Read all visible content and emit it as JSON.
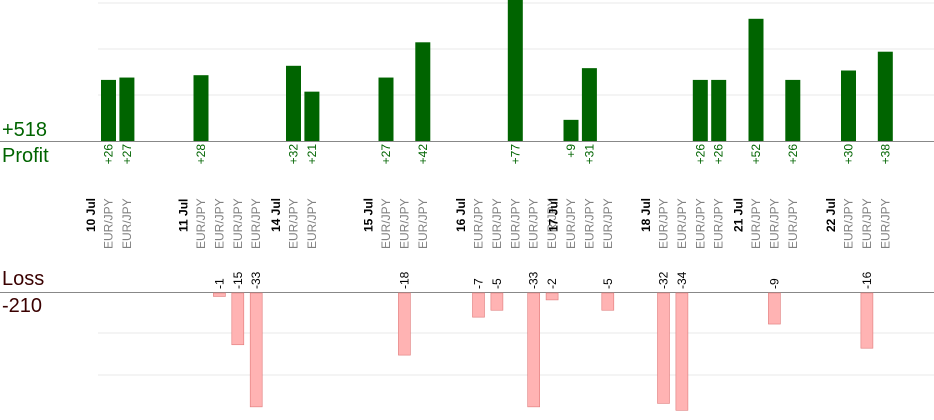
{
  "summary": {
    "profit_total": "+518",
    "profit_label": "Profit",
    "loss_label": "Loss",
    "loss_total": "-210"
  },
  "colors": {
    "profit_bar": "#006400",
    "profit_text": "#006400",
    "loss_bar": "#ffb3b3",
    "loss_text": "#000000",
    "date_text": "#000000",
    "pair_text": "#808080",
    "grid": "#e8e8e8",
    "baseline": "#888888"
  },
  "chart_data": {
    "type": "bar",
    "title": "",
    "xlabel": "",
    "ylabel": "",
    "grid": true,
    "profit_ylim": [
      0,
      60
    ],
    "loss_ylim": [
      -50,
      0
    ],
    "categories": [
      {
        "date": "10 Jul",
        "trades": [
          {
            "pair": "EUR/JPY",
            "value": 26
          },
          {
            "pair": "EUR/JPY",
            "value": 27
          }
        ]
      },
      {
        "date": "11 Jul",
        "trades": [
          {
            "pair": "EUR/JPY",
            "value": 28
          },
          {
            "pair": "EUR/JPY",
            "value": -1
          },
          {
            "pair": "EUR/JPY",
            "value": -15
          },
          {
            "pair": "EUR/JPY",
            "value": -33
          }
        ]
      },
      {
        "date": "14 Jul",
        "trades": [
          {
            "pair": "EUR/JPY",
            "value": 32
          },
          {
            "pair": "EUR/JPY",
            "value": 21
          }
        ]
      },
      {
        "date": "15 Jul",
        "trades": [
          {
            "pair": "EUR/JPY",
            "value": 27
          },
          {
            "pair": "EUR/JPY",
            "value": -18
          },
          {
            "pair": "EUR/JPY",
            "value": 42
          }
        ]
      },
      {
        "date": "16 Jul",
        "trades": [
          {
            "pair": "EUR/JPY",
            "value": -7
          },
          {
            "pair": "EUR/JPY",
            "value": -5
          },
          {
            "pair": "EUR/JPY",
            "value": 77
          },
          {
            "pair": "EUR/JPY",
            "value": -33
          },
          {
            "pair": "EUR/JPY",
            "value": -2
          }
        ]
      },
      {
        "date": "17 Jul",
        "trades": [
          {
            "pair": "EUR/JPY",
            "value": 9
          },
          {
            "pair": "EUR/JPY",
            "value": 31
          },
          {
            "pair": "EUR/JPY",
            "value": -5
          }
        ]
      },
      {
        "date": "18 Jul",
        "trades": [
          {
            "pair": "EUR/JPY",
            "value": -32
          },
          {
            "pair": "EUR/JPY",
            "value": -34
          },
          {
            "pair": "EUR/JPY",
            "value": 26
          },
          {
            "pair": "EUR/JPY",
            "value": 26
          }
        ]
      },
      {
        "date": "21 Jul",
        "trades": [
          {
            "pair": "EUR/JPY",
            "value": 52
          },
          {
            "pair": "EUR/JPY",
            "value": -9
          },
          {
            "pair": "EUR/JPY",
            "value": 26
          }
        ]
      },
      {
        "date": "22 Jul",
        "trades": [
          {
            "pair": "EUR/JPY",
            "value": 30
          },
          {
            "pair": "EUR/JPY",
            "value": -16
          },
          {
            "pair": "EUR/JPY",
            "value": 38
          }
        ]
      }
    ]
  }
}
